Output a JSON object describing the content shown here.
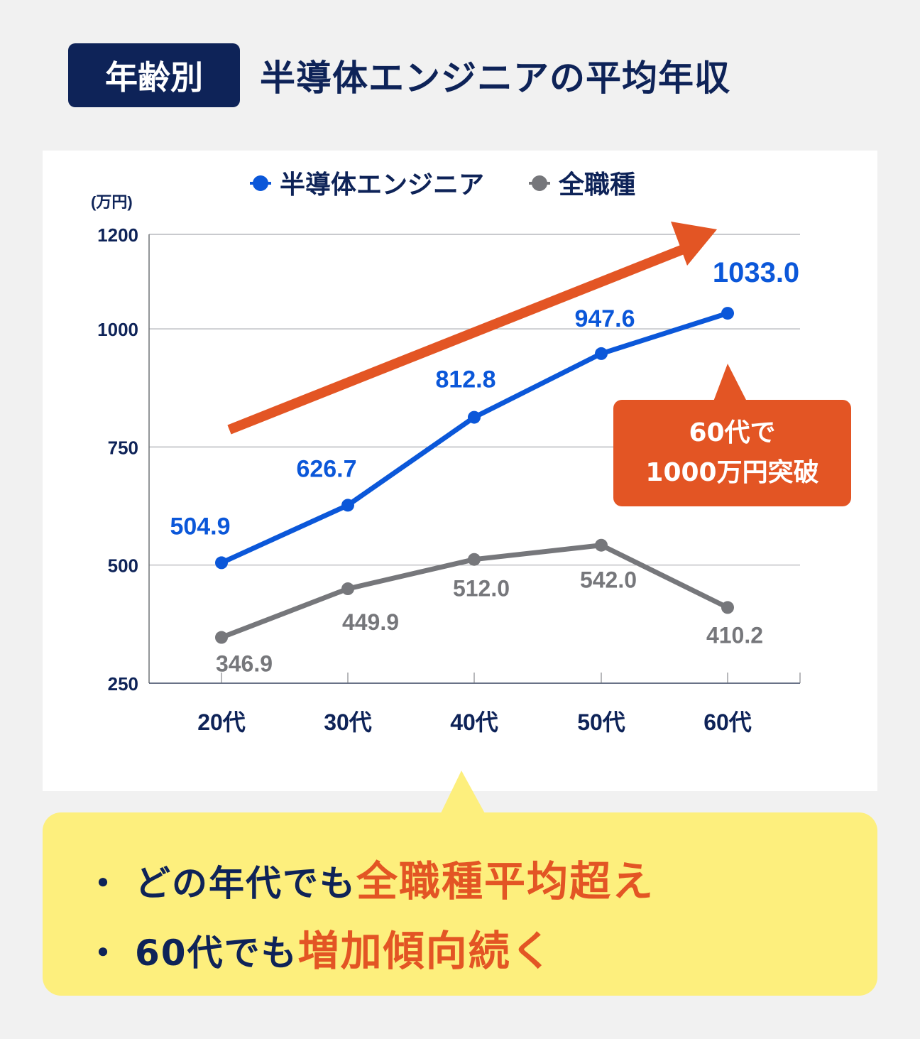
{
  "header": {
    "badge": "年齢別",
    "title": "半導体エンジニアの平均年収"
  },
  "colors": {
    "navy": "#0e2358",
    "engineer_blue": "#0b57d9",
    "all_gray": "#76777b",
    "accent_orange": "#e35524",
    "highlight_yellow": "#fdef7d"
  },
  "chart_data": {
    "type": "line",
    "title": "年齢別 半導体エンジニアの平均年収",
    "xlabel": "",
    "ylabel": "(万円)",
    "categories": [
      "20代",
      "30代",
      "40代",
      "50代",
      "60代"
    ],
    "series": [
      {
        "name": "半導体エンジニア",
        "color": "#0b57d9",
        "values": [
          504.9,
          626.7,
          812.8,
          947.6,
          1033.0
        ],
        "labels": [
          "504.9",
          "626.7",
          "812.8",
          "947.6",
          "1033.0"
        ]
      },
      {
        "name": "全職種",
        "color": "#76777b",
        "values": [
          346.9,
          449.9,
          512.0,
          542.0,
          410.2
        ],
        "labels": [
          "346.9",
          "449.9",
          "512.0",
          "542.0",
          "410.2"
        ]
      }
    ],
    "ylim": [
      250,
      1200
    ],
    "yticks": [
      "1200",
      "1000",
      "750",
      "500",
      "250"
    ],
    "grid": true,
    "legend_position": "top",
    "annotations": [
      "60代で 1000万円突破",
      "upward trend arrow"
    ]
  },
  "legend": {
    "engineer": "半導体エンジニア",
    "all": "全職種"
  },
  "axis": {
    "unit": "(万円)"
  },
  "callout": {
    "line1": "60代で",
    "line2": "1000万円突破"
  },
  "summary": {
    "bullet": "・",
    "line1_prefix": "どの年代でも",
    "line1_highlight": "全職種平均超え",
    "line2_prefix": "60代でも",
    "line2_highlight": "増加傾向続く"
  }
}
